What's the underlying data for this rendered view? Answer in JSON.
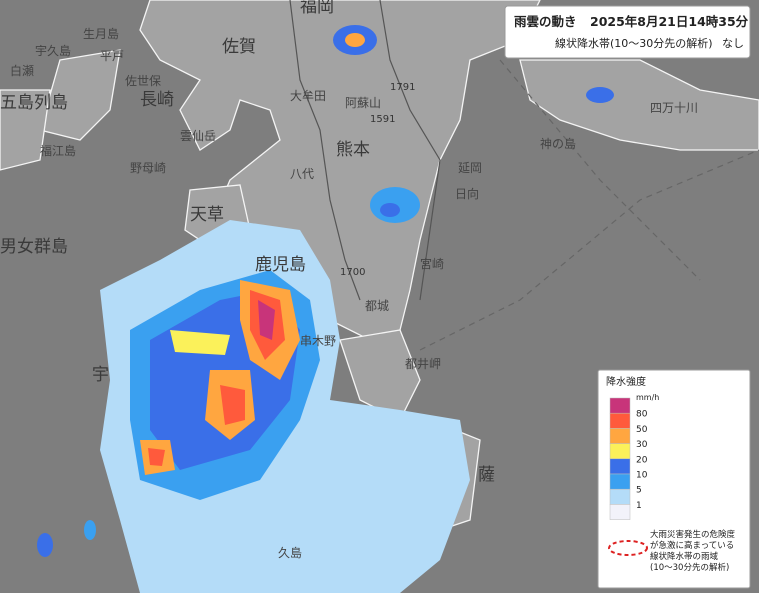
{
  "header": {
    "title": "雨雲の動き",
    "datetime": "2025年8月21日14時35分",
    "subtitle": "線状降水帯(10～30分先の解析)",
    "status": "なし"
  },
  "legend": {
    "title": "降水強度",
    "unit": "mm/h",
    "levels": [
      80,
      50,
      30,
      20,
      10,
      5,
      1
    ],
    "colors": [
      "#c8347a",
      "#ff5a3c",
      "#ffa640",
      "#fbf15a",
      "#3a6fe8",
      "#3aa0f0",
      "#b4dcf8",
      "#f2f2fa"
    ],
    "note": [
      "大雨災害発生の危険度",
      "が急激に高まっている",
      "線状降水帯の雨域",
      "(10～30分先の解析)"
    ]
  },
  "map": {
    "labels": [
      "福岡",
      "佐賀",
      "長崎",
      "熊本",
      "大牟田",
      "阿蘇山",
      "延岡",
      "日向",
      "宮崎",
      "都城",
      "八代",
      "天草",
      "鹿児島",
      "男女群島",
      "五島列島",
      "福江島",
      "宇久島",
      "生月島",
      "平戸",
      "佐世保",
      "野母崎",
      "四万十川",
      "神の島",
      "薩",
      "久島",
      "宇",
      "白瀬",
      "串木野",
      "雲仙岳",
      "都井岬"
    ],
    "elevations": [
      "1791",
      "1591",
      "1700"
    ]
  }
}
